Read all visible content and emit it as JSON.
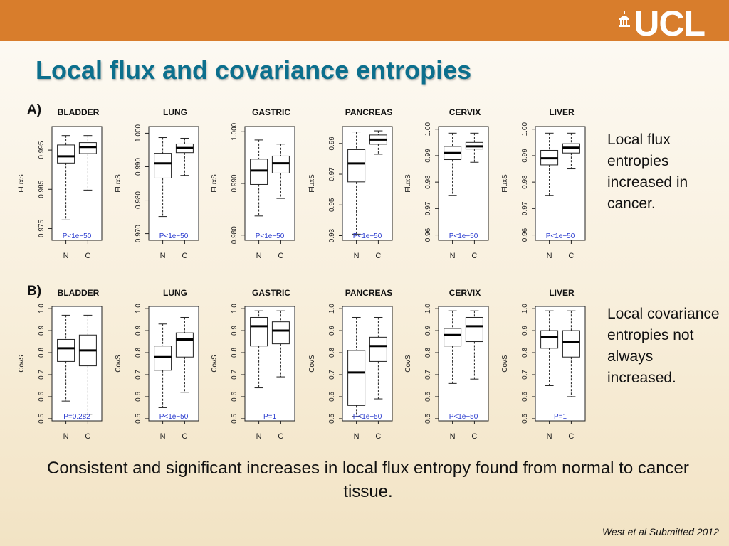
{
  "header": {
    "logo_text": "UCL"
  },
  "slide": {
    "title": "Local flux and covariance entropies",
    "note_a": "Local flux entropies increased in cancer.",
    "note_b": "Local covariance entropies not always increased.",
    "summary": "Consistent and significant increases in local flux entropy found from normal to cancer tissue.",
    "citation": "West et al Submitted 2012"
  },
  "colors": {
    "band": "#d87d2c",
    "title": "#0c6f8d",
    "pvalue": "#2b3ccf"
  },
  "chart_data": [
    {
      "type": "boxplot",
      "panel": "A)",
      "ylabel": "FluxS",
      "categories": [
        "N",
        "C"
      ],
      "subplots": [
        {
          "title": "BLADDER",
          "ylim": [
            0.972,
            1.001
          ],
          "ticks": [
            0.975,
            0.985,
            0.995
          ],
          "tick_labels": [
            "0.975",
            "0.985",
            "0.995"
          ],
          "pvalue": "P<1e−50",
          "boxes": [
            {
              "whisker_low": 0.9772,
              "q1": 0.9917,
              "median": 0.9934,
              "q3": 0.9963,
              "whisker_high": 0.9987
            },
            {
              "whisker_low": 0.9848,
              "q1": 0.9941,
              "median": 0.9958,
              "q3": 0.9969,
              "whisker_high": 0.9987
            }
          ]
        },
        {
          "title": "LUNG",
          "ylim": [
            0.968,
            1.002
          ],
          "ticks": [
            0.97,
            0.98,
            0.99,
            1.0
          ],
          "tick_labels": [
            "0.970",
            "0.980",
            "0.990",
            "1.000"
          ],
          "pvalue": "P<1e−50",
          "boxes": [
            {
              "whisker_low": 0.9751,
              "q1": 0.9866,
              "median": 0.991,
              "q3": 0.994,
              "whisker_high": 0.9987
            },
            {
              "whisker_low": 0.9874,
              "q1": 0.9942,
              "median": 0.9956,
              "q3": 0.9968,
              "whisker_high": 0.9985
            }
          ]
        },
        {
          "title": "GASTRIC",
          "ylim": [
            0.979,
            1.001
          ],
          "ticks": [
            0.98,
            0.99,
            1.0
          ],
          "tick_labels": [
            "0.980",
            "0.990",
            "1.000"
          ],
          "pvalue": "P<1e−50",
          "boxes": [
            {
              "whisker_low": 0.9837,
              "q1": 0.9898,
              "median": 0.9925,
              "q3": 0.9947,
              "whisker_high": 0.9984
            },
            {
              "whisker_low": 0.9871,
              "q1": 0.992,
              "median": 0.9939,
              "q3": 0.9953,
              "whisker_high": 0.9976
            }
          ]
        },
        {
          "title": "PANCREAS",
          "ylim": [
            0.927,
            1.001
          ],
          "ticks": [
            0.93,
            0.95,
            0.97,
            0.99
          ],
          "tick_labels": [
            "0.93",
            "0.95",
            "0.97",
            "0.99"
          ],
          "pvalue": "P<1e−50",
          "boxes": [
            {
              "whisker_low": 0.931,
              "q1": 0.965,
              "median": 0.977,
              "q3": 0.986,
              "whisker_high": 0.9975
            },
            {
              "whisker_low": 0.983,
              "q1": 0.9895,
              "median": 0.9925,
              "q3": 0.9955,
              "whisker_high": 0.9982
            }
          ]
        },
        {
          "title": "CERVIX",
          "ylim": [
            0.958,
            1.001
          ],
          "ticks": [
            0.96,
            0.97,
            0.98,
            0.99,
            1.0
          ],
          "tick_labels": [
            "0.96",
            "0.97",
            "0.98",
            "0.99",
            "1.00"
          ],
          "pvalue": "P<1e−50",
          "boxes": [
            {
              "whisker_low": 0.975,
              "q1": 0.9885,
              "median": 0.991,
              "q3": 0.9935,
              "whisker_high": 0.9985
            },
            {
              "whisker_low": 0.9875,
              "q1": 0.9925,
              "median": 0.9935,
              "q3": 0.995,
              "whisker_high": 0.9985
            }
          ]
        },
        {
          "title": "LIVER",
          "ylim": [
            0.958,
            1.001
          ],
          "ticks": [
            0.96,
            0.97,
            0.98,
            0.99,
            1.0
          ],
          "tick_labels": [
            "0.96",
            "0.97",
            "0.98",
            "0.99",
            "1.00"
          ],
          "pvalue": "P<1e−50",
          "boxes": [
            {
              "whisker_low": 0.975,
              "q1": 0.9865,
              "median": 0.989,
              "q3": 0.992,
              "whisker_high": 0.9985
            },
            {
              "whisker_low": 0.985,
              "q1": 0.991,
              "median": 0.993,
              "q3": 0.9945,
              "whisker_high": 0.9985
            }
          ]
        }
      ]
    },
    {
      "type": "boxplot",
      "panel": "B)",
      "ylabel": "CovS",
      "categories": [
        "N",
        "C"
      ],
      "subplots": [
        {
          "title": "BLADDER",
          "ylim": [
            0.49,
            1.01
          ],
          "ticks": [
            0.5,
            0.6,
            0.7,
            0.8,
            0.9,
            1.0
          ],
          "tick_labels": [
            "0.5",
            "0.6",
            "0.7",
            "0.8",
            "0.9",
            "1.0"
          ],
          "pvalue": "P=0.282",
          "boxes": [
            {
              "whisker_low": 0.58,
              "q1": 0.76,
              "median": 0.82,
              "q3": 0.86,
              "whisker_high": 0.97
            },
            {
              "whisker_low": 0.52,
              "q1": 0.74,
              "median": 0.81,
              "q3": 0.88,
              "whisker_high": 0.97
            }
          ]
        },
        {
          "title": "LUNG",
          "ylim": [
            0.49,
            1.01
          ],
          "ticks": [
            0.5,
            0.6,
            0.7,
            0.8,
            0.9,
            1.0
          ],
          "tick_labels": [
            "0.5",
            "0.6",
            "0.7",
            "0.8",
            "0.9",
            "1.0"
          ],
          "pvalue": "P<1e−50",
          "boxes": [
            {
              "whisker_low": 0.55,
              "q1": 0.72,
              "median": 0.78,
              "q3": 0.83,
              "whisker_high": 0.93
            },
            {
              "whisker_low": 0.62,
              "q1": 0.78,
              "median": 0.86,
              "q3": 0.89,
              "whisker_high": 0.96
            }
          ]
        },
        {
          "title": "GASTRIC",
          "ylim": [
            0.49,
            1.01
          ],
          "ticks": [
            0.5,
            0.6,
            0.7,
            0.8,
            0.9,
            1.0
          ],
          "tick_labels": [
            "0.5",
            "0.6",
            "0.7",
            "0.8",
            "0.9",
            "1.0"
          ],
          "pvalue": "P=1",
          "boxes": [
            {
              "whisker_low": 0.64,
              "q1": 0.83,
              "median": 0.92,
              "q3": 0.96,
              "whisker_high": 0.99
            },
            {
              "whisker_low": 0.69,
              "q1": 0.84,
              "median": 0.9,
              "q3": 0.94,
              "whisker_high": 0.99
            }
          ]
        },
        {
          "title": "PANCREAS",
          "ylim": [
            0.49,
            1.01
          ],
          "ticks": [
            0.5,
            0.6,
            0.7,
            0.8,
            0.9,
            1.0
          ],
          "tick_labels": [
            "0.5",
            "0.6",
            "0.7",
            "0.8",
            "0.9",
            "1.0"
          ],
          "pvalue": "P<1e−50",
          "boxes": [
            {
              "whisker_low": 0.51,
              "q1": 0.56,
              "median": 0.71,
              "q3": 0.81,
              "whisker_high": 0.96
            },
            {
              "whisker_low": 0.59,
              "q1": 0.76,
              "median": 0.83,
              "q3": 0.87,
              "whisker_high": 0.96
            }
          ]
        },
        {
          "title": "CERVIX",
          "ylim": [
            0.49,
            1.01
          ],
          "ticks": [
            0.5,
            0.6,
            0.7,
            0.8,
            0.9,
            1.0
          ],
          "tick_labels": [
            "0.5",
            "0.6",
            "0.7",
            "0.8",
            "0.9",
            "1.0"
          ],
          "pvalue": "P<1e−50",
          "boxes": [
            {
              "whisker_low": 0.66,
              "q1": 0.83,
              "median": 0.88,
              "q3": 0.91,
              "whisker_high": 0.99
            },
            {
              "whisker_low": 0.68,
              "q1": 0.85,
              "median": 0.92,
              "q3": 0.96,
              "whisker_high": 0.99
            }
          ]
        },
        {
          "title": "LIVER",
          "ylim": [
            0.49,
            1.01
          ],
          "ticks": [
            0.5,
            0.6,
            0.7,
            0.8,
            0.9,
            1.0
          ],
          "tick_labels": [
            "0.5",
            "0.6",
            "0.7",
            "0.8",
            "0.9",
            "1.0"
          ],
          "pvalue": "P=1",
          "boxes": [
            {
              "whisker_low": 0.65,
              "q1": 0.82,
              "median": 0.87,
              "q3": 0.9,
              "whisker_high": 0.99
            },
            {
              "whisker_low": 0.6,
              "q1": 0.78,
              "median": 0.85,
              "q3": 0.9,
              "whisker_high": 0.99
            }
          ]
        }
      ]
    }
  ]
}
